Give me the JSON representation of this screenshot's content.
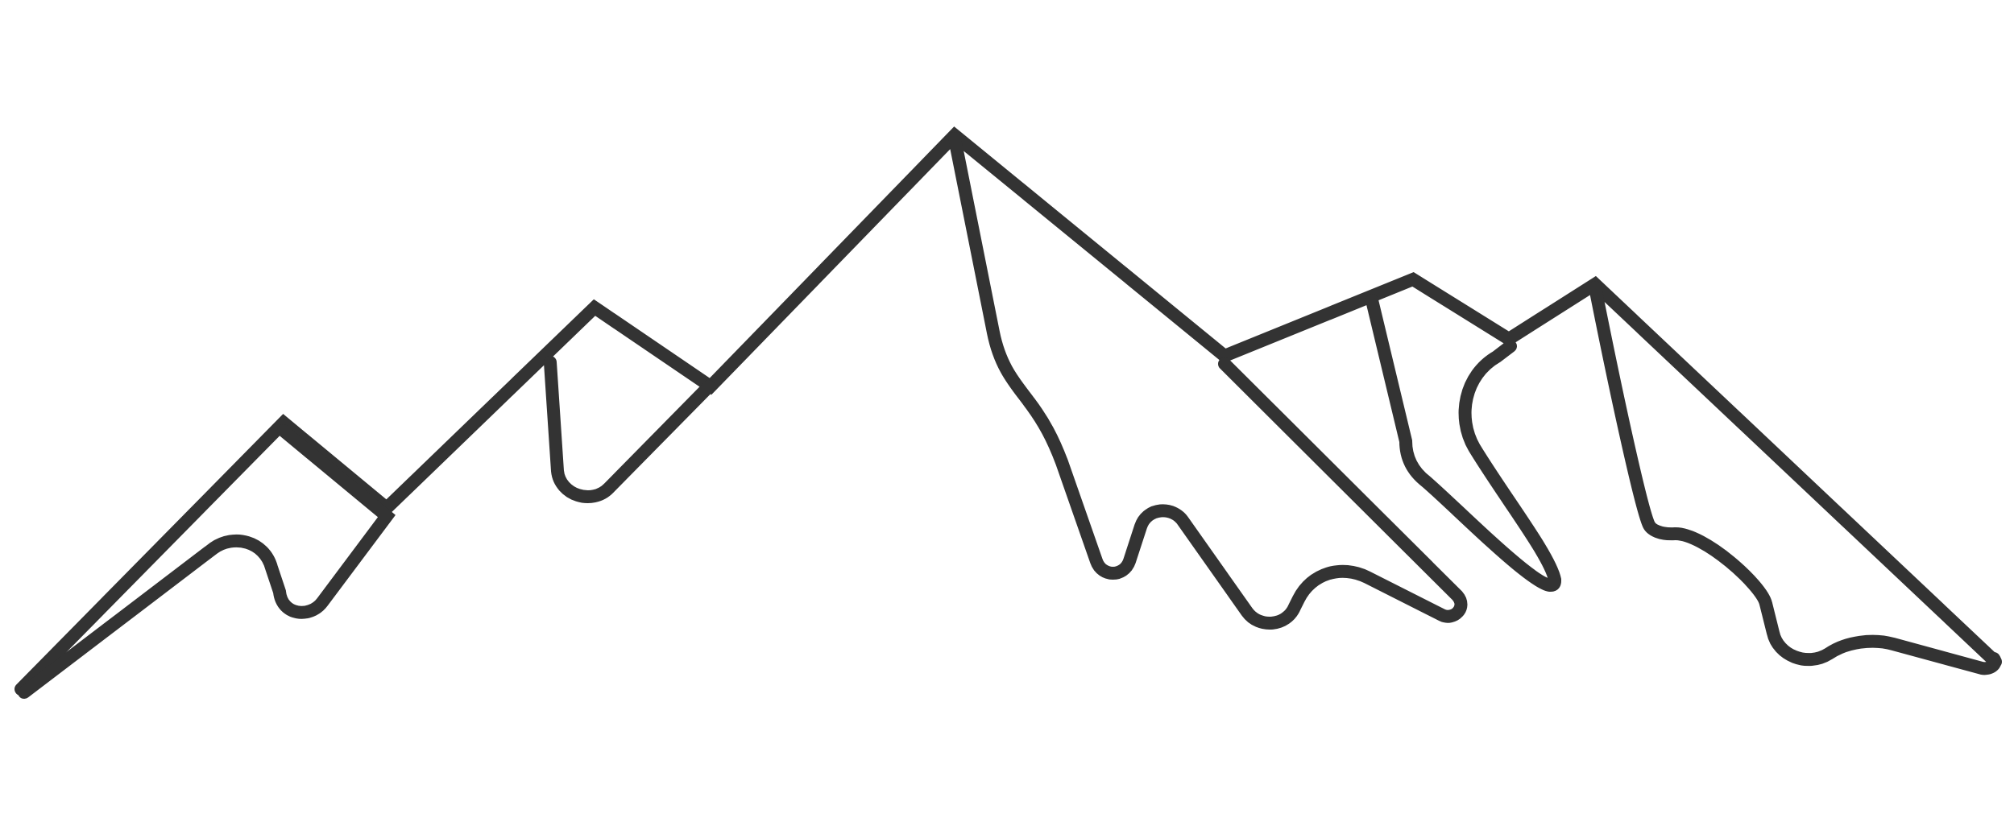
{
  "image": {
    "subject": "mountain-range-line-art",
    "background_color": "#ffffff",
    "stroke_color": "#333333",
    "peaks": [
      {
        "name": "left-small-peak"
      },
      {
        "name": "left-mid-peak"
      },
      {
        "name": "center-tall-peak"
      },
      {
        "name": "right-mid-peak"
      },
      {
        "name": "right-tall-peak"
      }
    ]
  }
}
